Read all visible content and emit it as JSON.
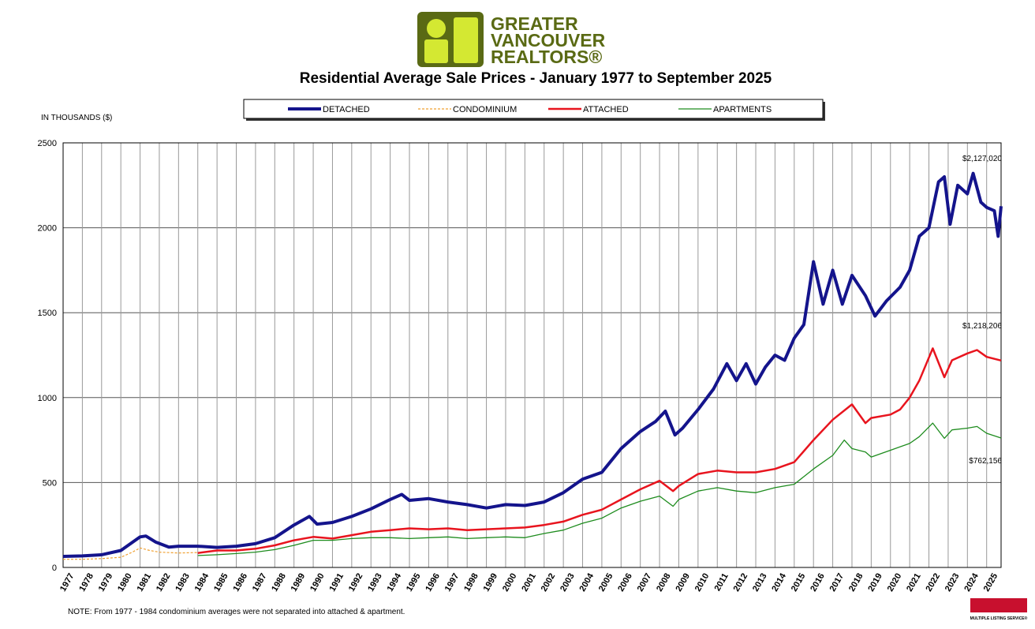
{
  "logo": {
    "lines": [
      "GREATER",
      "VANCOUVER",
      "REALTORS®"
    ],
    "mls": "MULTIPLE LISTING SERVICE®"
  },
  "chart_data": {
    "type": "line",
    "title": "Residential Average Sale Prices  -  January 1977 to September 2025",
    "y_label": "IN THOUSANDS ($)",
    "note": "NOTE:  From 1977 - 1984 condominium averages were not separated into attached & apartment.",
    "xlim": [
      1977,
      2025.75
    ],
    "xticks": [
      1977,
      1978,
      1979,
      1980,
      1981,
      1982,
      1983,
      1984,
      1985,
      1986,
      1987,
      1988,
      1989,
      1990,
      1991,
      1992,
      1993,
      1994,
      1995,
      1996,
      1997,
      1998,
      1999,
      2000,
      2001,
      2002,
      2003,
      2004,
      2005,
      2006,
      2007,
      2008,
      2009,
      2010,
      2011,
      2012,
      2013,
      2014,
      2015,
      2016,
      2017,
      2018,
      2019,
      2020,
      2021,
      2022,
      2023,
      2024,
      2025
    ],
    "ylim": [
      0,
      2500
    ],
    "yticks": [
      0,
      500,
      1000,
      1500,
      2000,
      2500
    ],
    "grid": true,
    "series": [
      {
        "name": "DETACHED",
        "color": "#14148c",
        "end_label": "$2,127,020",
        "x": [
          1977,
          1978,
          1979,
          1980,
          1980.5,
          1981,
          1981.3,
          1981.8,
          1982.5,
          1983,
          1984,
          1985,
          1986,
          1987,
          1988,
          1989,
          1989.8,
          1990.2,
          1991,
          1992,
          1993,
          1994,
          1994.6,
          1995,
          1996,
          1997,
          1998,
          1999,
          2000,
          2001,
          2002,
          2003,
          2004,
          2005,
          2006,
          2007,
          2007.8,
          2008.3,
          2008.8,
          2009.2,
          2010,
          2010.8,
          2011.5,
          2012,
          2012.5,
          2013,
          2013.5,
          2014,
          2014.5,
          2015,
          2015.5,
          2016,
          2016.5,
          2017,
          2017.5,
          2018,
          2018.7,
          2019.2,
          2019.8,
          2020.5,
          2021,
          2021.5,
          2022,
          2022.5,
          2022.8,
          2023.1,
          2023.5,
          2024,
          2024.3,
          2024.7,
          2025,
          2025.4,
          2025.6,
          2025.75
        ],
        "values": [
          65,
          68,
          75,
          100,
          140,
          180,
          185,
          150,
          120,
          125,
          125,
          118,
          125,
          140,
          175,
          250,
          300,
          255,
          265,
          300,
          345,
          400,
          430,
          395,
          405,
          385,
          370,
          350,
          370,
          365,
          385,
          440,
          520,
          560,
          700,
          800,
          860,
          920,
          780,
          820,
          930,
          1050,
          1200,
          1100,
          1200,
          1080,
          1180,
          1250,
          1220,
          1350,
          1430,
          1800,
          1550,
          1750,
          1550,
          1720,
          1600,
          1480,
          1570,
          1650,
          1750,
          1950,
          2000,
          2270,
          2300,
          2020,
          2250,
          2200,
          2320,
          2150,
          2120,
          2100,
          1950,
          2127.02
        ]
      },
      {
        "name": "CONDOMINIUM",
        "color": "#f0a030",
        "x": [
          1977,
          1978,
          1979,
          1980,
          1980.6,
          1981,
          1981.5,
          1982,
          1983,
          1984
        ],
        "values": [
          48,
          48,
          52,
          60,
          90,
          115,
          100,
          90,
          85,
          88
        ]
      },
      {
        "name": "ATTACHED",
        "color": "#e8141e",
        "end_label": "$1,218,206",
        "x": [
          1984,
          1985,
          1986,
          1987,
          1988,
          1989,
          1990,
          1991,
          1992,
          1993,
          1994,
          1995,
          1996,
          1997,
          1998,
          1999,
          2000,
          2001,
          2002,
          2003,
          2004,
          2005,
          2006,
          2007,
          2008,
          2008.7,
          2009,
          2010,
          2011,
          2012,
          2013,
          2014,
          2015,
          2016,
          2017,
          2018,
          2018.7,
          2019,
          2020,
          2020.5,
          2021,
          2021.5,
          2022.2,
          2022.8,
          2023.2,
          2024,
          2024.5,
          2025,
          2025.75
        ],
        "values": [
          85,
          100,
          100,
          110,
          130,
          160,
          180,
          170,
          190,
          210,
          220,
          230,
          225,
          230,
          220,
          225,
          230,
          235,
          250,
          270,
          310,
          340,
          400,
          460,
          510,
          450,
          480,
          550,
          570,
          560,
          560,
          580,
          620,
          750,
          870,
          960,
          850,
          880,
          900,
          930,
          1000,
          1100,
          1290,
          1120,
          1220,
          1260,
          1280,
          1240,
          1218.206
        ]
      },
      {
        "name": "APARTMENTS",
        "color": "#1e8c1e",
        "end_label": "$762,156",
        "x": [
          1984,
          1985,
          1986,
          1987,
          1988,
          1989,
          1990,
          1991,
          1992,
          1993,
          1994,
          1995,
          1996,
          1997,
          1998,
          1999,
          2000,
          2001,
          2002,
          2003,
          2004,
          2005,
          2006,
          2007,
          2008,
          2008.7,
          2009,
          2010,
          2011,
          2012,
          2013,
          2014,
          2015,
          2016,
          2017,
          2017.6,
          2018,
          2018.7,
          2019,
          2020,
          2021,
          2021.5,
          2022.2,
          2022.8,
          2023.2,
          2024,
          2024.5,
          2025,
          2025.75
        ],
        "values": [
          70,
          75,
          82,
          90,
          105,
          130,
          160,
          160,
          170,
          175,
          175,
          170,
          175,
          180,
          170,
          175,
          180,
          175,
          200,
          220,
          260,
          290,
          350,
          390,
          420,
          360,
          400,
          450,
          470,
          450,
          440,
          470,
          490,
          580,
          660,
          750,
          700,
          680,
          650,
          690,
          730,
          770,
          850,
          760,
          810,
          820,
          830,
          790,
          762.156
        ]
      }
    ]
  }
}
